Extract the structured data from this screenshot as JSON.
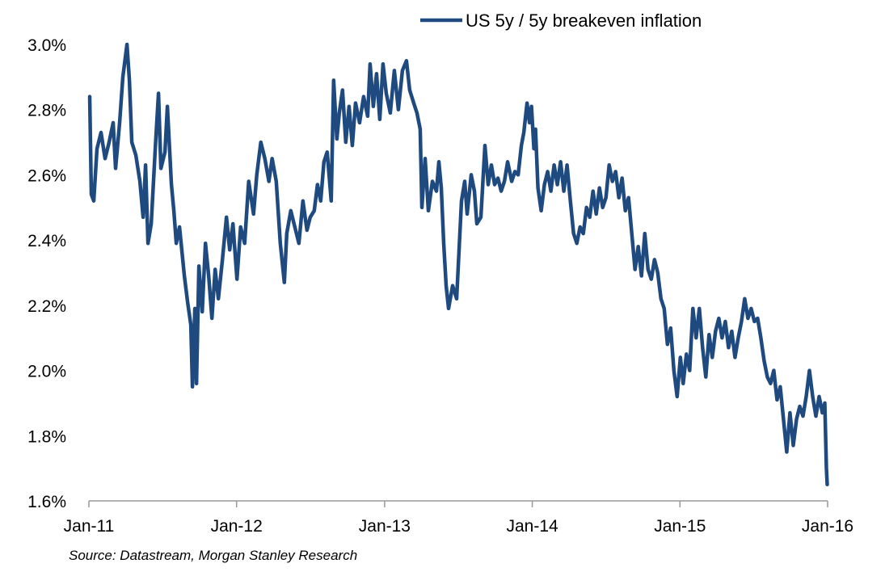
{
  "chart_data": {
    "type": "line",
    "title": "",
    "xlabel": "",
    "ylabel": "",
    "ylim": [
      1.6,
      3.0
    ],
    "xlim": [
      "2011-01-01",
      "2016-01-01"
    ],
    "yticks": [
      "1.6%",
      "1.8%",
      "2.0%",
      "2.2%",
      "2.4%",
      "2.6%",
      "2.8%",
      "3.0%"
    ],
    "ytick_values": [
      1.6,
      1.8,
      2.0,
      2.2,
      2.4,
      2.6,
      2.8,
      3.0
    ],
    "xticks": [
      "Jan-11",
      "Jan-12",
      "Jan-13",
      "Jan-14",
      "Jan-15",
      "Jan-16"
    ],
    "xtick_values": [
      "2011-01-01",
      "2012-01-01",
      "2013-01-01",
      "2014-01-01",
      "2015-01-01",
      "2016-01-01"
    ],
    "grid": false,
    "legend_position": "top-right",
    "source": "Source: Datastream,  Morgan Stanley Research",
    "series": [
      {
        "name": "US 5y / 5y breakeven inflation",
        "color": "#1f4a80",
        "points": [
          [
            "2011-01-03",
            2.84
          ],
          [
            "2011-01-07",
            2.54
          ],
          [
            "2011-01-13",
            2.52
          ],
          [
            "2011-01-21",
            2.68
          ],
          [
            "2011-01-31",
            2.73
          ],
          [
            "2011-02-10",
            2.65
          ],
          [
            "2011-02-20",
            2.7
          ],
          [
            "2011-03-02",
            2.76
          ],
          [
            "2011-03-08",
            2.62
          ],
          [
            "2011-03-18",
            2.76
          ],
          [
            "2011-03-26",
            2.9
          ],
          [
            "2011-04-05",
            3.0
          ],
          [
            "2011-04-11",
            2.89
          ],
          [
            "2011-04-17",
            2.7
          ],
          [
            "2011-04-27",
            2.66
          ],
          [
            "2011-05-07",
            2.58
          ],
          [
            "2011-05-15",
            2.47
          ],
          [
            "2011-05-21",
            2.63
          ],
          [
            "2011-05-27",
            2.39
          ],
          [
            "2011-06-04",
            2.45
          ],
          [
            "2011-06-14",
            2.68
          ],
          [
            "2011-06-22",
            2.85
          ],
          [
            "2011-06-28",
            2.62
          ],
          [
            "2011-07-08",
            2.67
          ],
          [
            "2011-07-14",
            2.81
          ],
          [
            "2011-07-24",
            2.57
          ],
          [
            "2011-07-30",
            2.49
          ],
          [
            "2011-08-05",
            2.39
          ],
          [
            "2011-08-13",
            2.44
          ],
          [
            "2011-08-25",
            2.29
          ],
          [
            "2011-09-02",
            2.21
          ],
          [
            "2011-09-10",
            2.14
          ],
          [
            "2011-09-14",
            1.95
          ],
          [
            "2011-09-20",
            2.19
          ],
          [
            "2011-09-24",
            1.96
          ],
          [
            "2011-09-30",
            2.32
          ],
          [
            "2011-10-08",
            2.18
          ],
          [
            "2011-10-16",
            2.39
          ],
          [
            "2011-10-24",
            2.29
          ],
          [
            "2011-11-01",
            2.16
          ],
          [
            "2011-11-09",
            2.31
          ],
          [
            "2011-11-17",
            2.22
          ],
          [
            "2011-11-27",
            2.34
          ],
          [
            "2011-12-07",
            2.47
          ],
          [
            "2011-12-15",
            2.37
          ],
          [
            "2011-12-23",
            2.45
          ],
          [
            "2012-01-02",
            2.28
          ],
          [
            "2012-01-11",
            2.44
          ],
          [
            "2012-01-21",
            2.39
          ],
          [
            "2012-01-31",
            2.58
          ],
          [
            "2012-02-12",
            2.48
          ],
          [
            "2012-02-20",
            2.6
          ],
          [
            "2012-03-01",
            2.7
          ],
          [
            "2012-03-11",
            2.65
          ],
          [
            "2012-03-21",
            2.58
          ],
          [
            "2012-03-29",
            2.65
          ],
          [
            "2012-04-08",
            2.58
          ],
          [
            "2012-04-18",
            2.39
          ],
          [
            "2012-04-28",
            2.27
          ],
          [
            "2012-05-04",
            2.42
          ],
          [
            "2012-05-14",
            2.49
          ],
          [
            "2012-05-24",
            2.44
          ],
          [
            "2012-06-03",
            2.39
          ],
          [
            "2012-06-13",
            2.52
          ],
          [
            "2012-06-23",
            2.43
          ],
          [
            "2012-07-01",
            2.47
          ],
          [
            "2012-07-11",
            2.49
          ],
          [
            "2012-07-19",
            2.57
          ],
          [
            "2012-07-27",
            2.52
          ],
          [
            "2012-08-04",
            2.64
          ],
          [
            "2012-08-12",
            2.67
          ],
          [
            "2012-08-22",
            2.52
          ],
          [
            "2012-08-28",
            2.89
          ],
          [
            "2012-09-05",
            2.71
          ],
          [
            "2012-09-11",
            2.79
          ],
          [
            "2012-09-19",
            2.86
          ],
          [
            "2012-09-27",
            2.7
          ],
          [
            "2012-10-05",
            2.81
          ],
          [
            "2012-10-13",
            2.69
          ],
          [
            "2012-10-21",
            2.82
          ],
          [
            "2012-10-31",
            2.76
          ],
          [
            "2012-11-10",
            2.84
          ],
          [
            "2012-11-20",
            2.78
          ],
          [
            "2012-11-26",
            2.94
          ],
          [
            "2012-12-04",
            2.81
          ],
          [
            "2012-12-12",
            2.91
          ],
          [
            "2012-12-20",
            2.77
          ],
          [
            "2012-12-28",
            2.94
          ],
          [
            "2013-01-05",
            2.85
          ],
          [
            "2013-01-15",
            2.79
          ],
          [
            "2013-01-25",
            2.92
          ],
          [
            "2013-02-04",
            2.8
          ],
          [
            "2013-02-14",
            2.92
          ],
          [
            "2013-02-24",
            2.95
          ],
          [
            "2013-03-04",
            2.86
          ],
          [
            "2013-03-14",
            2.82
          ],
          [
            "2013-03-22",
            2.79
          ],
          [
            "2013-03-30",
            2.74
          ],
          [
            "2013-04-03",
            2.5
          ],
          [
            "2013-04-11",
            2.65
          ],
          [
            "2013-04-19",
            2.49
          ],
          [
            "2013-04-29",
            2.58
          ],
          [
            "2013-05-09",
            2.55
          ],
          [
            "2013-05-15",
            2.64
          ],
          [
            "2013-05-21",
            2.56
          ],
          [
            "2013-05-27",
            2.39
          ],
          [
            "2013-06-02",
            2.26
          ],
          [
            "2013-06-08",
            2.19
          ],
          [
            "2013-06-18",
            2.26
          ],
          [
            "2013-06-28",
            2.22
          ],
          [
            "2013-07-04",
            2.37
          ],
          [
            "2013-07-10",
            2.52
          ],
          [
            "2013-07-18",
            2.58
          ],
          [
            "2013-07-24",
            2.48
          ],
          [
            "2013-08-03",
            2.6
          ],
          [
            "2013-08-11",
            2.55
          ],
          [
            "2013-08-17",
            2.45
          ],
          [
            "2013-08-27",
            2.47
          ],
          [
            "2013-09-06",
            2.69
          ],
          [
            "2013-09-14",
            2.57
          ],
          [
            "2013-09-22",
            2.63
          ],
          [
            "2013-09-30",
            2.57
          ],
          [
            "2013-10-08",
            2.59
          ],
          [
            "2013-10-16",
            2.55
          ],
          [
            "2013-10-24",
            2.58
          ],
          [
            "2013-11-01",
            2.64
          ],
          [
            "2013-11-11",
            2.58
          ],
          [
            "2013-11-19",
            2.61
          ],
          [
            "2013-11-27",
            2.6
          ],
          [
            "2013-12-05",
            2.69
          ],
          [
            "2013-12-11",
            2.73
          ],
          [
            "2013-12-19",
            2.82
          ],
          [
            "2013-12-25",
            2.76
          ],
          [
            "2013-12-30",
            2.81
          ],
          [
            "2014-01-05",
            2.68
          ],
          [
            "2014-01-09",
            2.74
          ],
          [
            "2014-01-15",
            2.56
          ],
          [
            "2014-01-23",
            2.49
          ],
          [
            "2014-01-31",
            2.57
          ],
          [
            "2014-02-08",
            2.61
          ],
          [
            "2014-02-16",
            2.55
          ],
          [
            "2014-02-24",
            2.63
          ],
          [
            "2014-03-04",
            2.57
          ],
          [
            "2014-03-12",
            2.64
          ],
          [
            "2014-03-20",
            2.55
          ],
          [
            "2014-03-28",
            2.63
          ],
          [
            "2014-04-05",
            2.52
          ],
          [
            "2014-04-13",
            2.42
          ],
          [
            "2014-04-21",
            2.39
          ],
          [
            "2014-04-29",
            2.44
          ],
          [
            "2014-05-07",
            2.42
          ],
          [
            "2014-05-15",
            2.5
          ],
          [
            "2014-05-23",
            2.47
          ],
          [
            "2014-05-31",
            2.55
          ],
          [
            "2014-06-08",
            2.48
          ],
          [
            "2014-06-16",
            2.56
          ],
          [
            "2014-06-24",
            2.5
          ],
          [
            "2014-07-02",
            2.53
          ],
          [
            "2014-07-10",
            2.63
          ],
          [
            "2014-07-18",
            2.58
          ],
          [
            "2014-07-26",
            2.61
          ],
          [
            "2014-08-03",
            2.53
          ],
          [
            "2014-08-11",
            2.59
          ],
          [
            "2014-08-19",
            2.49
          ],
          [
            "2014-08-27",
            2.53
          ],
          [
            "2014-09-04",
            2.42
          ],
          [
            "2014-09-12",
            2.31
          ],
          [
            "2014-09-20",
            2.38
          ],
          [
            "2014-09-28",
            2.29
          ],
          [
            "2014-10-06",
            2.42
          ],
          [
            "2014-10-14",
            2.31
          ],
          [
            "2014-10-22",
            2.28
          ],
          [
            "2014-10-30",
            2.34
          ],
          [
            "2014-11-07",
            2.3
          ],
          [
            "2014-11-15",
            2.22
          ],
          [
            "2014-11-23",
            2.19
          ],
          [
            "2014-12-01",
            2.08
          ],
          [
            "2014-12-09",
            2.13
          ],
          [
            "2014-12-17",
            2.0
          ],
          [
            "2014-12-25",
            1.92
          ],
          [
            "2015-01-02",
            2.04
          ],
          [
            "2015-01-09",
            1.96
          ],
          [
            "2015-01-17",
            2.05
          ],
          [
            "2015-01-25",
            2.0
          ],
          [
            "2015-02-02",
            2.19
          ],
          [
            "2015-02-10",
            2.1
          ],
          [
            "2015-02-18",
            2.19
          ],
          [
            "2015-02-26",
            2.07
          ],
          [
            "2015-03-06",
            1.98
          ],
          [
            "2015-03-14",
            2.11
          ],
          [
            "2015-03-22",
            2.04
          ],
          [
            "2015-03-30",
            2.12
          ],
          [
            "2015-04-07",
            2.16
          ],
          [
            "2015-04-15",
            2.1
          ],
          [
            "2015-04-23",
            2.15
          ],
          [
            "2015-05-01",
            2.07
          ],
          [
            "2015-05-09",
            2.12
          ],
          [
            "2015-05-17",
            2.04
          ],
          [
            "2015-05-25",
            2.1
          ],
          [
            "2015-06-02",
            2.15
          ],
          [
            "2015-06-10",
            2.22
          ],
          [
            "2015-06-18",
            2.16
          ],
          [
            "2015-06-26",
            2.19
          ],
          [
            "2015-07-04",
            2.15
          ],
          [
            "2015-07-12",
            2.16
          ],
          [
            "2015-07-20",
            2.1
          ],
          [
            "2015-07-28",
            2.03
          ],
          [
            "2015-08-05",
            1.98
          ],
          [
            "2015-08-13",
            1.96
          ],
          [
            "2015-08-21",
            2.0
          ],
          [
            "2015-08-29",
            1.91
          ],
          [
            "2015-09-06",
            1.95
          ],
          [
            "2015-09-14",
            1.85
          ],
          [
            "2015-09-22",
            1.75
          ],
          [
            "2015-09-30",
            1.87
          ],
          [
            "2015-10-08",
            1.77
          ],
          [
            "2015-10-16",
            1.85
          ],
          [
            "2015-10-24",
            1.89
          ],
          [
            "2015-11-01",
            1.86
          ],
          [
            "2015-11-09",
            1.92
          ],
          [
            "2015-11-17",
            2.0
          ],
          [
            "2015-11-25",
            1.92
          ],
          [
            "2015-12-03",
            1.86
          ],
          [
            "2015-12-11",
            1.92
          ],
          [
            "2015-12-19",
            1.87
          ],
          [
            "2015-12-25",
            1.9
          ],
          [
            "2015-12-29",
            1.7
          ],
          [
            "2015-12-31",
            1.65
          ]
        ]
      }
    ]
  }
}
